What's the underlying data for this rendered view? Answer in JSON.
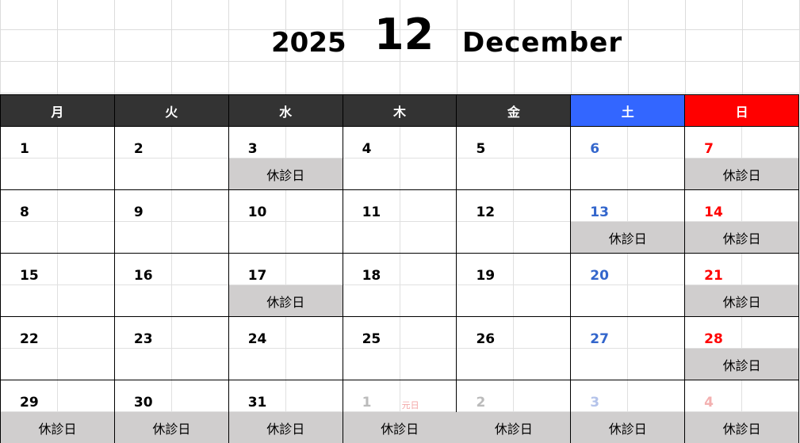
{
  "title": {
    "year": "2025",
    "month_number": "12",
    "month_name": "December"
  },
  "weekdays": [
    {
      "label": "月",
      "type": "weekday"
    },
    {
      "label": "火",
      "type": "weekday"
    },
    {
      "label": "水",
      "type": "weekday"
    },
    {
      "label": "木",
      "type": "weekday"
    },
    {
      "label": "金",
      "type": "weekday"
    },
    {
      "label": "土",
      "type": "sat"
    },
    {
      "label": "日",
      "type": "sun"
    }
  ],
  "closed_label": "休診日",
  "colors": {
    "header_dark": "#333333",
    "saturday": "#3366ff",
    "sunday": "#ff0000",
    "closed_bg": "#d0cece"
  },
  "weeks": [
    [
      {
        "day": "1",
        "closed": false
      },
      {
        "day": "2",
        "closed": false
      },
      {
        "day": "3",
        "closed": true
      },
      {
        "day": "4",
        "closed": false
      },
      {
        "day": "5",
        "closed": false
      },
      {
        "day": "6",
        "closed": false
      },
      {
        "day": "7",
        "closed": true
      }
    ],
    [
      {
        "day": "8",
        "closed": false
      },
      {
        "day": "9",
        "closed": false
      },
      {
        "day": "10",
        "closed": false
      },
      {
        "day": "11",
        "closed": false
      },
      {
        "day": "12",
        "closed": false
      },
      {
        "day": "13",
        "closed": true
      },
      {
        "day": "14",
        "closed": true
      }
    ],
    [
      {
        "day": "15",
        "closed": false
      },
      {
        "day": "16",
        "closed": false
      },
      {
        "day": "17",
        "closed": true
      },
      {
        "day": "18",
        "closed": false
      },
      {
        "day": "19",
        "closed": false
      },
      {
        "day": "20",
        "closed": false
      },
      {
        "day": "21",
        "closed": true
      }
    ],
    [
      {
        "day": "22",
        "closed": false
      },
      {
        "day": "23",
        "closed": false
      },
      {
        "day": "24",
        "closed": false
      },
      {
        "day": "25",
        "closed": false
      },
      {
        "day": "26",
        "closed": false
      },
      {
        "day": "27",
        "closed": false
      },
      {
        "day": "28",
        "closed": true
      }
    ],
    [
      {
        "day": "29",
        "closed": true
      },
      {
        "day": "30",
        "closed": true
      },
      {
        "day": "31",
        "closed": true
      },
      {
        "day": "1",
        "closed": true,
        "next_month": true,
        "note": "元日"
      },
      {
        "day": "2",
        "closed": true,
        "next_month": true
      },
      {
        "day": "3",
        "closed": true,
        "next_month": true
      },
      {
        "day": "4",
        "closed": true,
        "next_month": true
      }
    ]
  ]
}
